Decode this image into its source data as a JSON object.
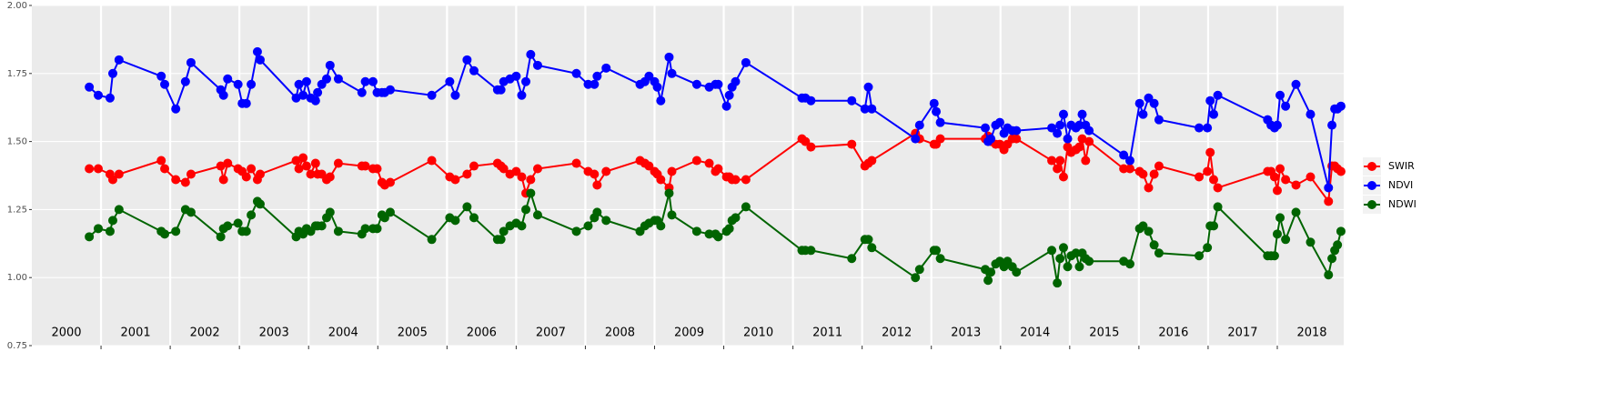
{
  "chart_data": {
    "type": "line",
    "x": [
      2000.83,
      2000.96,
      2001.13,
      2001.17,
      2001.26,
      2001.87,
      2001.92,
      2002.08,
      2002.22,
      2002.3,
      2002.73,
      2002.77,
      2002.83,
      2002.98,
      2003.04,
      2003.1,
      2003.17,
      2003.26,
      2003.3,
      2003.82,
      2003.86,
      2003.92,
      2003.97,
      2004.03,
      2004.1,
      2004.13,
      2004.19,
      2004.26,
      2004.31,
      2004.43,
      2004.77,
      2004.82,
      2004.93,
      2004.99,
      2005.06,
      2005.1,
      2005.18,
      2005.78,
      2006.04,
      2006.12,
      2006.29,
      2006.39,
      2006.73,
      2006.78,
      2006.82,
      2006.91,
      2007.0,
      2007.08,
      2007.14,
      2007.21,
      2007.31,
      2007.87,
      2008.04,
      2008.13,
      2008.17,
      2008.3,
      2008.79,
      2008.86,
      2008.92,
      2009.0,
      2009.04,
      2009.09,
      2009.21,
      2009.25,
      2009.61,
      2009.79,
      2009.88,
      2009.92,
      2010.04,
      2010.08,
      2010.12,
      2010.17,
      2010.32,
      2011.13,
      2011.18,
      2011.26,
      2011.85,
      2012.04,
      2012.09,
      2012.14,
      2012.77,
      2012.83,
      2013.04,
      2013.07,
      2013.13,
      2013.78,
      2013.82,
      2013.86,
      2013.93,
      2013.99,
      2014.05,
      2014.1,
      2014.17,
      2014.23,
      2014.74,
      2014.82,
      2014.86,
      2014.91,
      2014.97,
      2015.02,
      2015.09,
      2015.14,
      2015.18,
      2015.23,
      2015.28,
      2015.78,
      2015.87,
      2016.01,
      2016.06,
      2016.14,
      2016.22,
      2016.29,
      2016.87,
      2016.99,
      2017.03,
      2017.08,
      2017.14,
      2017.86,
      2017.91,
      2017.96,
      2018.0,
      2018.04,
      2018.12,
      2018.27,
      2018.48,
      2018.74,
      2018.79,
      2018.83,
      2018.87,
      2018.92
    ],
    "series": [
      {
        "name": "SWIR",
        "color": "#ff0000",
        "values": [
          1.4,
          1.4,
          1.38,
          1.36,
          1.38,
          1.43,
          1.4,
          1.36,
          1.35,
          1.38,
          1.41,
          1.36,
          1.42,
          1.4,
          1.39,
          1.37,
          1.4,
          1.36,
          1.38,
          1.43,
          1.4,
          1.44,
          1.41,
          1.38,
          1.42,
          1.38,
          1.38,
          1.36,
          1.37,
          1.42,
          1.41,
          1.41,
          1.4,
          1.4,
          1.35,
          1.34,
          1.35,
          1.43,
          1.37,
          1.36,
          1.38,
          1.41,
          1.42,
          1.41,
          1.4,
          1.38,
          1.39,
          1.37,
          1.31,
          1.36,
          1.4,
          1.42,
          1.39,
          1.38,
          1.34,
          1.39,
          1.43,
          1.42,
          1.41,
          1.39,
          1.38,
          1.36,
          1.33,
          1.39,
          1.43,
          1.42,
          1.39,
          1.4,
          1.37,
          1.37,
          1.36,
          1.36,
          1.36,
          1.51,
          1.5,
          1.48,
          1.49,
          1.41,
          1.42,
          1.43,
          1.53,
          1.51,
          1.49,
          1.49,
          1.51,
          1.51,
          1.52,
          1.5,
          1.49,
          1.49,
          1.47,
          1.49,
          1.51,
          1.51,
          1.43,
          1.4,
          1.43,
          1.37,
          1.48,
          1.46,
          1.47,
          1.48,
          1.51,
          1.43,
          1.5,
          1.4,
          1.4,
          1.39,
          1.38,
          1.33,
          1.38,
          1.41,
          1.37,
          1.39,
          1.46,
          1.36,
          1.33,
          1.39,
          1.39,
          1.37,
          1.32,
          1.4,
          1.36,
          1.34,
          1.37,
          1.28,
          1.41,
          1.41,
          1.4,
          1.39
        ]
      },
      {
        "name": "NDVI",
        "color": "#0000ff",
        "values": [
          1.7,
          1.67,
          1.66,
          1.75,
          1.8,
          1.74,
          1.71,
          1.62,
          1.72,
          1.79,
          1.69,
          1.67,
          1.73,
          1.71,
          1.64,
          1.64,
          1.71,
          1.83,
          1.8,
          1.66,
          1.71,
          1.67,
          1.72,
          1.66,
          1.65,
          1.68,
          1.71,
          1.73,
          1.78,
          1.73,
          1.68,
          1.72,
          1.72,
          1.68,
          1.68,
          1.68,
          1.69,
          1.67,
          1.72,
          1.67,
          1.8,
          1.76,
          1.69,
          1.69,
          1.72,
          1.73,
          1.74,
          1.67,
          1.72,
          1.82,
          1.78,
          1.75,
          1.71,
          1.71,
          1.74,
          1.77,
          1.71,
          1.72,
          1.74,
          1.72,
          1.7,
          1.65,
          1.81,
          1.75,
          1.71,
          1.7,
          1.71,
          1.71,
          1.63,
          1.67,
          1.7,
          1.72,
          1.79,
          1.66,
          1.66,
          1.65,
          1.65,
          1.62,
          1.7,
          1.62,
          1.51,
          1.56,
          1.64,
          1.61,
          1.57,
          1.55,
          1.5,
          1.51,
          1.56,
          1.57,
          1.53,
          1.55,
          1.54,
          1.54,
          1.55,
          1.53,
          1.56,
          1.6,
          1.51,
          1.56,
          1.55,
          1.56,
          1.6,
          1.56,
          1.54,
          1.45,
          1.43,
          1.64,
          1.6,
          1.66,
          1.64,
          1.58,
          1.55,
          1.55,
          1.65,
          1.6,
          1.67,
          1.58,
          1.56,
          1.55,
          1.56,
          1.67,
          1.63,
          1.71,
          1.6,
          1.33,
          1.56,
          1.62,
          1.62,
          1.63
        ]
      },
      {
        "name": "NDWI",
        "color": "#006400",
        "values": [
          1.15,
          1.18,
          1.17,
          1.21,
          1.25,
          1.17,
          1.16,
          1.17,
          1.25,
          1.24,
          1.15,
          1.18,
          1.19,
          1.2,
          1.17,
          1.17,
          1.23,
          1.28,
          1.27,
          1.15,
          1.17,
          1.16,
          1.18,
          1.17,
          1.19,
          1.19,
          1.19,
          1.22,
          1.24,
          1.17,
          1.16,
          1.18,
          1.18,
          1.18,
          1.23,
          1.22,
          1.24,
          1.14,
          1.22,
          1.21,
          1.26,
          1.22,
          1.14,
          1.14,
          1.17,
          1.19,
          1.2,
          1.19,
          1.25,
          1.31,
          1.23,
          1.17,
          1.19,
          1.22,
          1.24,
          1.21,
          1.17,
          1.19,
          1.2,
          1.21,
          1.21,
          1.19,
          1.31,
          1.23,
          1.17,
          1.16,
          1.16,
          1.15,
          1.17,
          1.18,
          1.21,
          1.22,
          1.26,
          1.1,
          1.1,
          1.1,
          1.07,
          1.14,
          1.14,
          1.11,
          1.0,
          1.03,
          1.1,
          1.1,
          1.07,
          1.03,
          0.99,
          1.02,
          1.05,
          1.06,
          1.04,
          1.06,
          1.04,
          1.02,
          1.1,
          0.98,
          1.07,
          1.11,
          1.04,
          1.08,
          1.09,
          1.04,
          1.09,
          1.07,
          1.06,
          1.06,
          1.05,
          1.18,
          1.19,
          1.17,
          1.12,
          1.09,
          1.08,
          1.11,
          1.19,
          1.19,
          1.26,
          1.08,
          1.08,
          1.08,
          1.16,
          1.22,
          1.14,
          1.24,
          1.13,
          1.01,
          1.07,
          1.1,
          1.12,
          1.17
        ]
      }
    ],
    "xlim": [
      2000.0,
      2018.96
    ],
    "ylim": [
      0.75,
      2.0
    ],
    "yticks": [
      {
        "value": 0.75,
        "label": "0.75"
      },
      {
        "value": 1,
        "label": "1.00"
      },
      {
        "value": 1.25,
        "label": "1.25"
      },
      {
        "value": 1.5,
        "label": "1.50"
      },
      {
        "value": 1.75,
        "label": "1.75"
      },
      {
        "value": 2,
        "label": "2.00"
      }
    ],
    "year_gridlines": [
      2001,
      2002,
      2003,
      2004,
      2005,
      2006,
      2007,
      2008,
      2009,
      2010,
      2011,
      2012,
      2013,
      2014,
      2015,
      2016,
      2017,
      2018
    ],
    "annotations": [
      {
        "x": 2000.5,
        "text": "2000"
      },
      {
        "x": 2001.5,
        "text": "2001"
      },
      {
        "x": 2002.5,
        "text": "2002"
      },
      {
        "x": 2003.5,
        "text": "2003"
      },
      {
        "x": 2004.5,
        "text": "2004"
      },
      {
        "x": 2005.5,
        "text": "2005"
      },
      {
        "x": 2006.5,
        "text": "2006"
      },
      {
        "x": 2007.5,
        "text": "2007"
      },
      {
        "x": 2008.5,
        "text": "2008"
      },
      {
        "x": 2009.5,
        "text": "2009"
      },
      {
        "x": 2010.5,
        "text": "2010"
      },
      {
        "x": 2011.5,
        "text": "2011"
      },
      {
        "x": 2012.5,
        "text": "2012"
      },
      {
        "x": 2013.5,
        "text": "2013"
      },
      {
        "x": 2014.5,
        "text": "2014"
      },
      {
        "x": 2015.5,
        "text": "2015"
      },
      {
        "x": 2016.5,
        "text": "2016"
      },
      {
        "x": 2017.5,
        "text": "2017"
      },
      {
        "x": 2018.5,
        "text": "2018"
      }
    ],
    "grid": true,
    "legend": "right"
  }
}
